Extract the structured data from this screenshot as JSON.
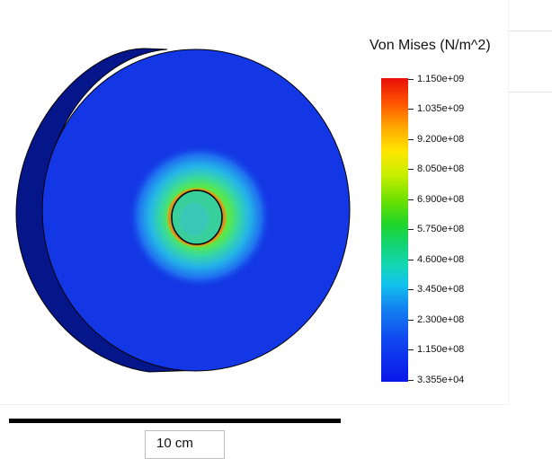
{
  "legend": {
    "title": "Von Mises (N/m^2)",
    "ticks": [
      "1.150e+09",
      "1.035e+09",
      "9.200e+08",
      "8.050e+08",
      "6.900e+08",
      "5.750e+08",
      "4.600e+08",
      "3.450e+08",
      "2.300e+08",
      "1.150e+08",
      "3.355e+04"
    ],
    "colors": {
      "max": "#e8100a",
      "high": "#ffa600",
      "mid_high": "#ffe500",
      "mid": "#20d52a",
      "low_mid": "#12c2ee",
      "low": "#1048f0",
      "min": "#0a16e8"
    }
  },
  "scale": {
    "label": "10 cm"
  },
  "model": {
    "face_color": "#1337e4",
    "side_color": "#05168a",
    "outline_color": "#000000"
  }
}
